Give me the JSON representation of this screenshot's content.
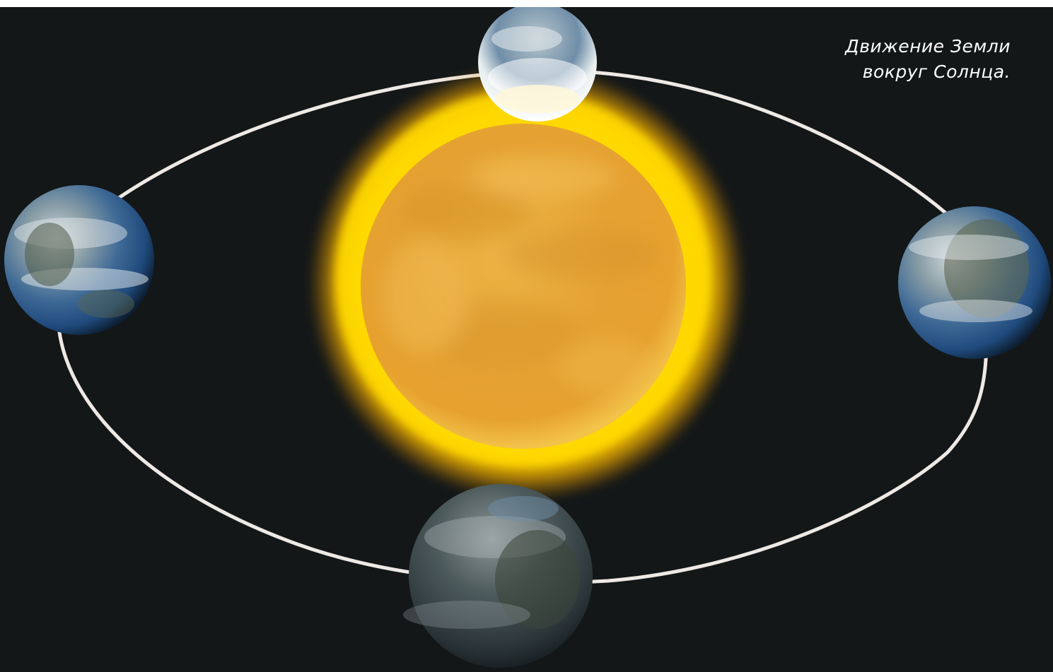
{
  "caption": {
    "line1": "Движение Земли",
    "line2": "вокруг Солнца."
  },
  "colors": {
    "background": "#131718",
    "orbit": "#efe9e6",
    "sun_core": "#e9a93a",
    "sun_glow": "#ffd400",
    "earth_ocean": "#2f64a5",
    "earth_land": "#4a5a44"
  },
  "icons": {
    "sun": "sun-icon",
    "earth": "earth-icon"
  }
}
